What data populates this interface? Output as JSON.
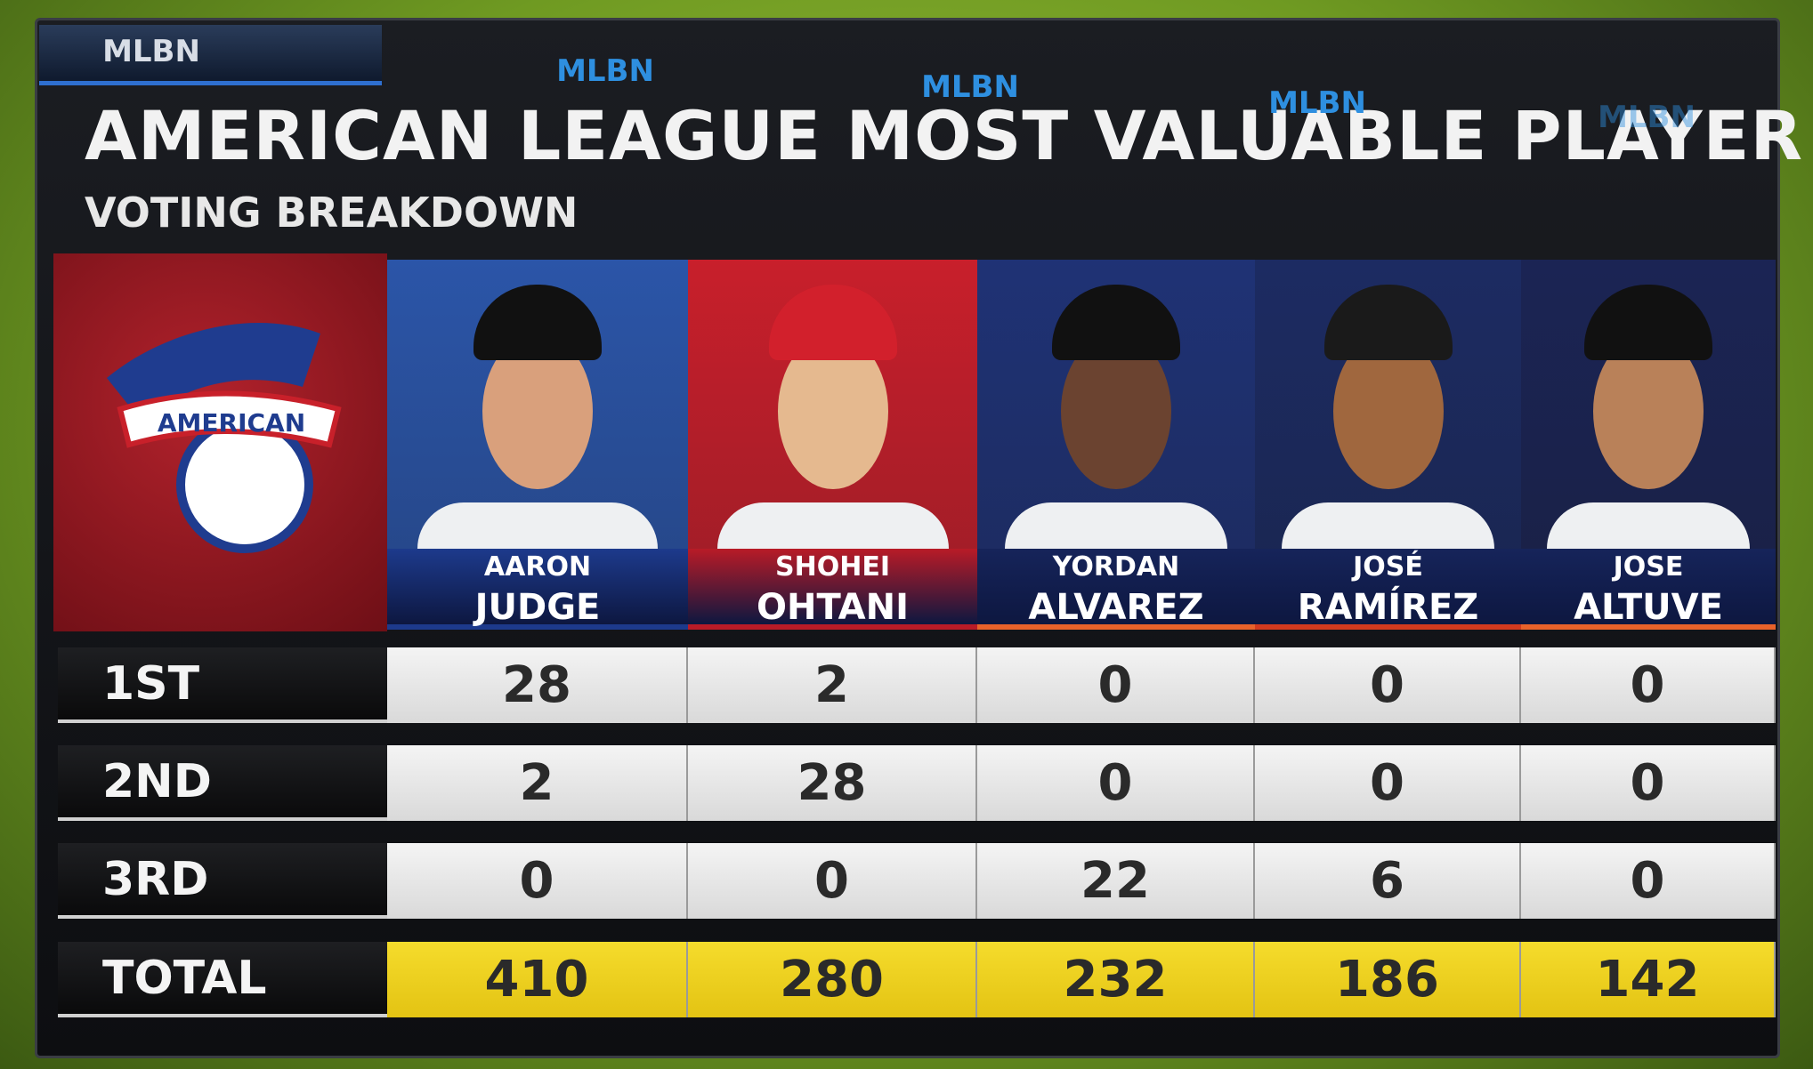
{
  "header": {
    "network_tabs": [
      "MLBN",
      "MLBN",
      "MLBN",
      "MLBN",
      "MLBN"
    ],
    "title": "AMERICAN LEAGUE MOST VALUABLE PLAYER",
    "subtitle": "VOTING BREAKDOWN"
  },
  "logo": {
    "text": "AMERICAN"
  },
  "table": {
    "columns": [
      {
        "first": "AARON",
        "last": "JUDGE"
      },
      {
        "first": "SHOHEI",
        "last": "OHTANI"
      },
      {
        "first": "YORDAN",
        "last": "ALVAREZ"
      },
      {
        "first": "JOSÉ",
        "last": "RAMÍREZ"
      },
      {
        "first": "JOSE",
        "last": "ALTUVE"
      }
    ],
    "rows": [
      {
        "label": "1ST",
        "values": [
          28,
          2,
          0,
          0,
          0
        ]
      },
      {
        "label": "2ND",
        "values": [
          2,
          28,
          0,
          0,
          0
        ]
      },
      {
        "label": "3RD",
        "values": [
          0,
          0,
          22,
          6,
          0
        ]
      },
      {
        "label": "TOTAL",
        "values": [
          410,
          280,
          232,
          186,
          142
        ]
      }
    ]
  }
}
